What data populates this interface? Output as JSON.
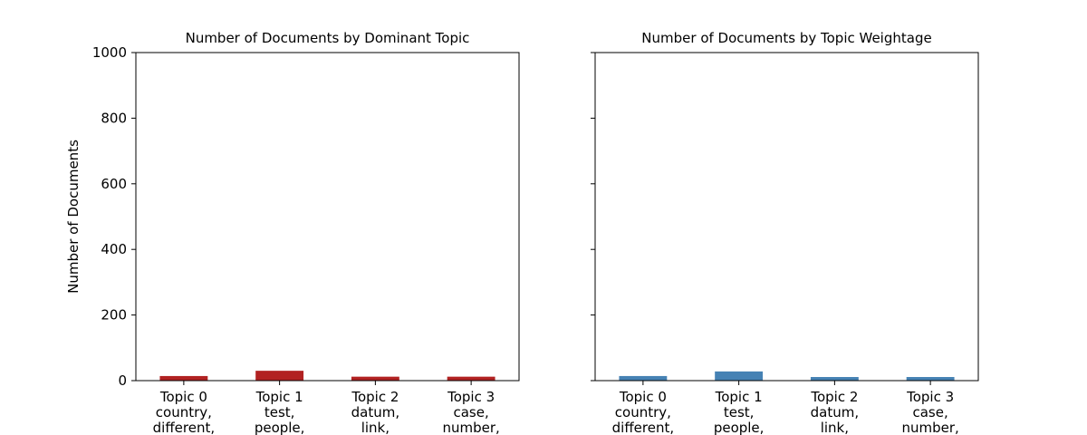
{
  "chart_data": [
    {
      "type": "bar",
      "title": "Number of Documents by Dominant Topic",
      "ylabel": "Number of Documents",
      "xlabel": "",
      "ylim": [
        0,
        1000
      ],
      "yticks": [
        0,
        200,
        400,
        600,
        800,
        1000
      ],
      "grid": false,
      "color": "#b22222",
      "categories": [
        [
          "Topic 0",
          "country,",
          "different,"
        ],
        [
          "Topic 1",
          "test,",
          "people,"
        ],
        [
          "Topic 2",
          "datum,",
          "link,"
        ],
        [
          "Topic 3",
          "case,",
          "number,"
        ]
      ],
      "values": [
        14,
        30,
        12,
        12
      ]
    },
    {
      "type": "bar",
      "title": "Number of Documents by Topic Weightage",
      "ylabel": "",
      "xlabel": "",
      "ylim": [
        0,
        1000
      ],
      "yticks": [
        0,
        200,
        400,
        600,
        800,
        1000
      ],
      "grid": false,
      "color": "#4682b4",
      "categories": [
        [
          "Topic 0",
          "country,",
          "different,"
        ],
        [
          "Topic 1",
          "test,",
          "people,"
        ],
        [
          "Topic 2",
          "datum,",
          "link,"
        ],
        [
          "Topic 3",
          "case,",
          "number,"
        ]
      ],
      "values": [
        14,
        28,
        11,
        11
      ]
    }
  ]
}
